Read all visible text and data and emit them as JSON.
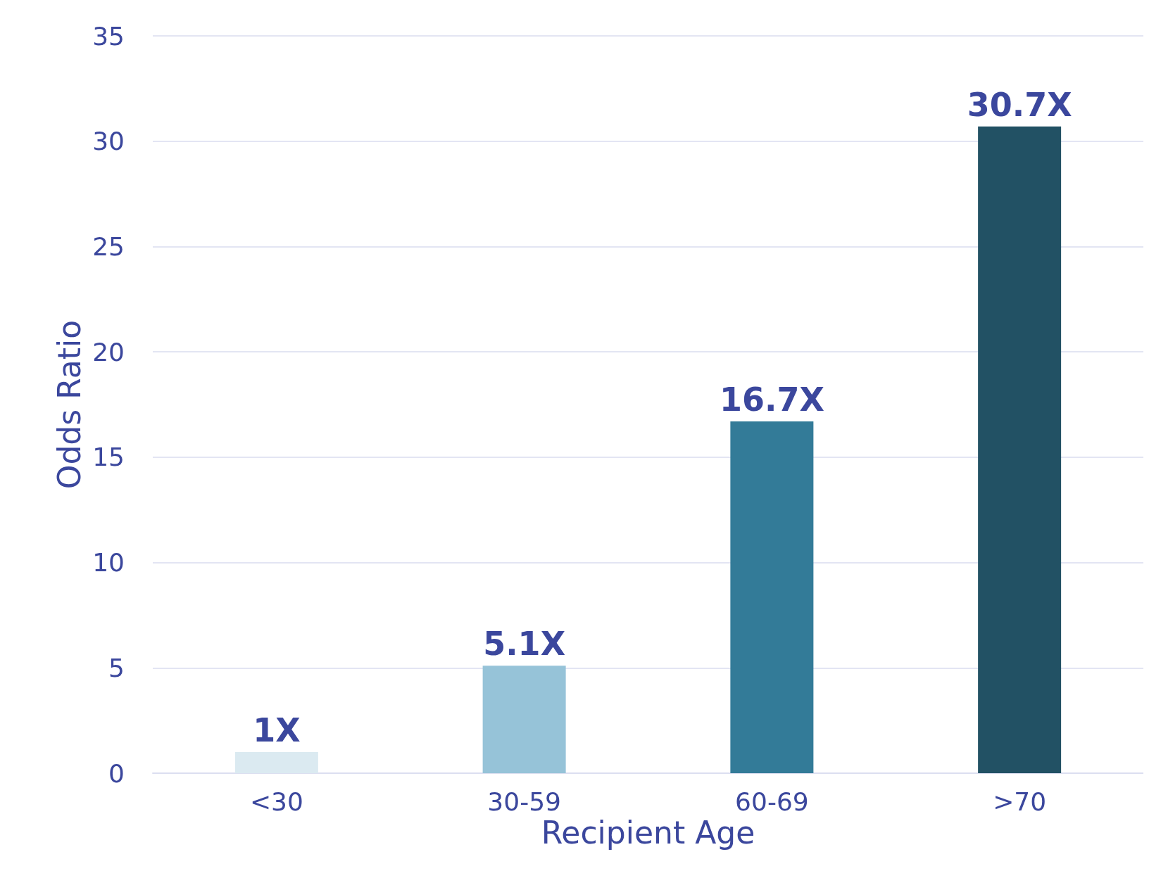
{
  "chart_data": {
    "type": "bar",
    "xlabel": "Recipient Age",
    "ylabel": "Odds Ratio",
    "categories": [
      "<30",
      "30-59",
      "60-69",
      ">70"
    ],
    "values": [
      1,
      5.1,
      16.7,
      30.7
    ],
    "colors": [
      "#dbeaf1",
      "#96c3d8",
      "#337b98",
      "#225164"
    ],
    "value_labels": [
      "1X",
      "5.1X",
      "16.7X",
      "30.7X"
    ],
    "ylim": [
      0,
      35
    ],
    "yticks": [
      0,
      5,
      10,
      15,
      20,
      25,
      30,
      35
    ],
    "grid": "y"
  }
}
